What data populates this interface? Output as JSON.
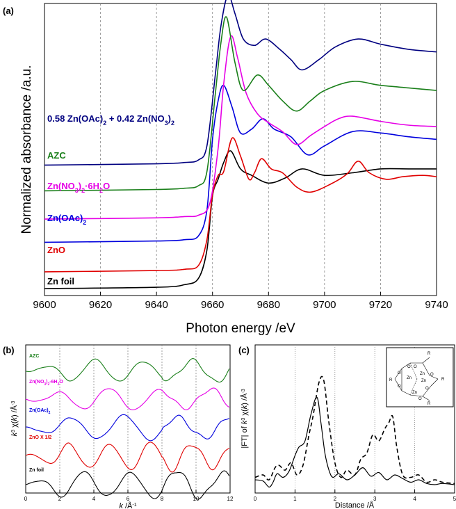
{
  "chart_data": [
    {
      "panel_label": "(a)",
      "type": "line",
      "xlabel": "Photon energy /eV",
      "ylabel": "Normalized absorbance /a.u.",
      "xlim": [
        9600,
        9740
      ],
      "x_ticks": [
        9600,
        9620,
        9640,
        9660,
        9680,
        9700,
        9720,
        9740
      ],
      "grid": "vertical dashed",
      "series": [
        {
          "name": "Zn foil",
          "color": "#000000",
          "offset": 0.0,
          "x": [
            9600,
            9640,
            9650,
            9655,
            9658,
            9660,
            9662,
            9664,
            9666.5,
            9670,
            9674,
            9680,
            9686,
            9692,
            9700,
            9710,
            9720,
            9730,
            9740
          ],
          "y": [
            0.0,
            0.01,
            0.03,
            0.08,
            0.3,
            0.72,
            0.85,
            0.98,
            1.07,
            0.93,
            0.88,
            0.82,
            0.86,
            0.93,
            0.88,
            0.9,
            0.93,
            0.93,
            0.93
          ]
        },
        {
          "name": "ZnO",
          "color": "#e00000",
          "offset": 0.13,
          "x": [
            9600,
            9640,
            9650,
            9655,
            9658,
            9660,
            9662,
            9664,
            9667,
            9670,
            9673,
            9675,
            9677.5,
            9681,
            9685,
            9690,
            9695,
            9702,
            9708,
            9712,
            9716,
            9722,
            9728,
            9735,
            9740
          ],
          "y": [
            0.0,
            0.01,
            0.02,
            0.05,
            0.25,
            0.6,
            0.75,
            0.78,
            1.04,
            0.9,
            0.72,
            0.77,
            0.88,
            0.8,
            0.77,
            0.66,
            0.62,
            0.68,
            0.76,
            0.86,
            0.77,
            0.72,
            0.74,
            0.75,
            0.74
          ]
        },
        {
          "name": "Zn(OAc)2",
          "color": "#0000dd",
          "offset": 0.36,
          "x": [
            9600,
            9640,
            9650,
            9655,
            9658,
            9660,
            9662,
            9664,
            9667,
            9670,
            9674,
            9678,
            9682,
            9688,
            9694,
            9700,
            9710,
            9720,
            9730,
            9740
          ],
          "y": [
            0.0,
            0.01,
            0.02,
            0.05,
            0.25,
            0.8,
            1.1,
            1.22,
            1.05,
            0.85,
            0.88,
            0.96,
            0.88,
            0.82,
            0.68,
            0.75,
            0.86,
            0.85,
            0.82,
            0.8
          ]
        },
        {
          "name": "Zn(NO3)2·6H2O",
          "color": "#e600e6",
          "offset": 0.54,
          "x": [
            9600,
            9640,
            9650,
            9655,
            9659,
            9662,
            9664,
            9666.5,
            9669,
            9672,
            9676,
            9680,
            9685,
            9690,
            9695,
            9700,
            9705,
            9710,
            9720,
            9730,
            9740
          ],
          "y": [
            0.0,
            0.01,
            0.02,
            0.03,
            0.12,
            0.55,
            1.05,
            1.42,
            1.25,
            0.98,
            0.82,
            0.75,
            0.68,
            0.58,
            0.65,
            0.72,
            0.78,
            0.8,
            0.76,
            0.73,
            0.72
          ]
        },
        {
          "name": "AZC",
          "color": "#1a7f1a",
          "offset": 0.76,
          "x": [
            9600,
            9640,
            9650,
            9655,
            9658,
            9661,
            9663,
            9665,
            9668,
            9671,
            9676,
            9680,
            9685,
            9690,
            9695,
            9700,
            9710,
            9720,
            9730,
            9740
          ],
          "y": [
            0.0,
            0.01,
            0.02,
            0.04,
            0.15,
            0.75,
            1.15,
            1.35,
            1.0,
            0.78,
            0.9,
            0.82,
            0.7,
            0.62,
            0.7,
            0.78,
            0.85,
            0.82,
            0.8,
            0.78
          ]
        },
        {
          "name": "0.58 Zn(OAc)2 + 0.42 Zn(NO3)2",
          "color": "#000080",
          "offset": 0.96,
          "x": [
            9600,
            9640,
            9650,
            9655,
            9658,
            9661,
            9663,
            9665.5,
            9668,
            9671,
            9675,
            9679,
            9684,
            9688,
            9692,
            9698,
            9704,
            9712,
            9720,
            9730,
            9740
          ],
          "y": [
            0.0,
            0.01,
            0.02,
            0.04,
            0.15,
            0.7,
            1.08,
            1.32,
            1.18,
            0.98,
            0.93,
            0.98,
            0.9,
            0.82,
            0.74,
            0.82,
            0.92,
            0.98,
            0.94,
            0.9,
            0.88
          ]
        }
      ]
    },
    {
      "panel_label": "(b)",
      "type": "line",
      "xlabel": "k /Å⁻¹",
      "ylabel": "k³ χ(k) /Å⁻³",
      "xlim": [
        0,
        12
      ],
      "x_ticks": [
        0,
        2,
        4,
        6,
        8,
        10,
        12
      ],
      "grid": "vertical dashed",
      "series": [
        {
          "name": "Zn foil",
          "color": "#000000",
          "base": 0.5,
          "amp": 0.45,
          "freq": 2.3
        },
        {
          "name": "ZnO X 1/2",
          "color": "#e00000",
          "base": 1.5,
          "amp": 0.45,
          "freq": 2.6
        },
        {
          "name": "Zn(OAc)2",
          "color": "#0000dd",
          "base": 2.5,
          "amp": 0.4,
          "freq": 2.0
        },
        {
          "name": "Zn(NO3)2·6H2O",
          "color": "#e600e6",
          "base": 3.5,
          "amp": 0.35,
          "freq": 2.1
        },
        {
          "name": "AZC",
          "color": "#1a7f1a",
          "base": 4.5,
          "amp": 0.35,
          "freq": 2.2
        }
      ]
    },
    {
      "panel_label": "(c)",
      "type": "line",
      "xlabel": "Distance /Å",
      "ylabel": "|FT| of k³ χ(k) /Å⁻³",
      "xlim": [
        0,
        5
      ],
      "x_ticks": [
        0,
        1,
        2,
        3,
        4,
        5
      ],
      "grid": "vertical dotted",
      "series": [
        {
          "name": "solid",
          "style": "solid",
          "color": "#000000",
          "x": [
            0,
            0.2,
            0.35,
            0.45,
            0.55,
            0.7,
            0.85,
            1.0,
            1.1,
            1.25,
            1.4,
            1.55,
            1.65,
            1.75,
            1.85,
            1.95,
            2.1,
            2.3,
            2.5,
            2.7,
            2.9,
            3.1,
            3.3,
            3.5,
            3.7,
            3.9,
            4.1,
            4.3,
            4.5,
            4.7,
            5.0
          ],
          "y": [
            0.08,
            0.07,
            0.02,
            0.06,
            0.13,
            0.1,
            0.15,
            0.28,
            0.35,
            0.4,
            0.62,
            0.76,
            0.55,
            0.3,
            0.16,
            0.1,
            0.13,
            0.08,
            0.12,
            0.18,
            0.11,
            0.14,
            0.08,
            0.12,
            0.09,
            0.06,
            0.08,
            0.05,
            0.04,
            0.05,
            0.04
          ]
        },
        {
          "name": "dashed",
          "style": "dashed",
          "color": "#000000",
          "x": [
            0,
            0.2,
            0.35,
            0.5,
            0.6,
            0.75,
            0.9,
            1.05,
            1.2,
            1.35,
            1.45,
            1.6,
            1.72,
            1.85,
            2.0,
            2.15,
            2.3,
            2.5,
            2.65,
            2.8,
            2.95,
            3.1,
            3.25,
            3.35,
            3.45,
            3.55,
            3.7,
            3.9,
            4.1,
            4.3,
            4.5,
            4.7,
            5.0
          ],
          "y": [
            0.1,
            0.12,
            0.08,
            0.18,
            0.2,
            0.16,
            0.22,
            0.12,
            0.2,
            0.45,
            0.6,
            0.88,
            0.9,
            0.55,
            0.22,
            0.1,
            0.16,
            0.12,
            0.25,
            0.3,
            0.45,
            0.4,
            0.5,
            0.55,
            0.6,
            0.35,
            0.12,
            0.1,
            0.12,
            0.06,
            0.08,
            0.06,
            0.05
          ]
        }
      ]
    }
  ],
  "legend_labels": {
    "a": [
      "0.58 Zn(OAc)2 + 0.42 Zn(NO3)2",
      "AZC",
      "Zn(NO3)2·6H2O",
      "Zn(OAc)2",
      "ZnO",
      "Zn foil"
    ],
    "b": [
      "AZC",
      "Zn(NO3)2-6H2O",
      "Zn(OAc)2",
      "ZnO X 1/2",
      "Zn foil"
    ]
  },
  "inset_atoms": {
    "zn": "Zn",
    "o": "O",
    "r": "R"
  }
}
